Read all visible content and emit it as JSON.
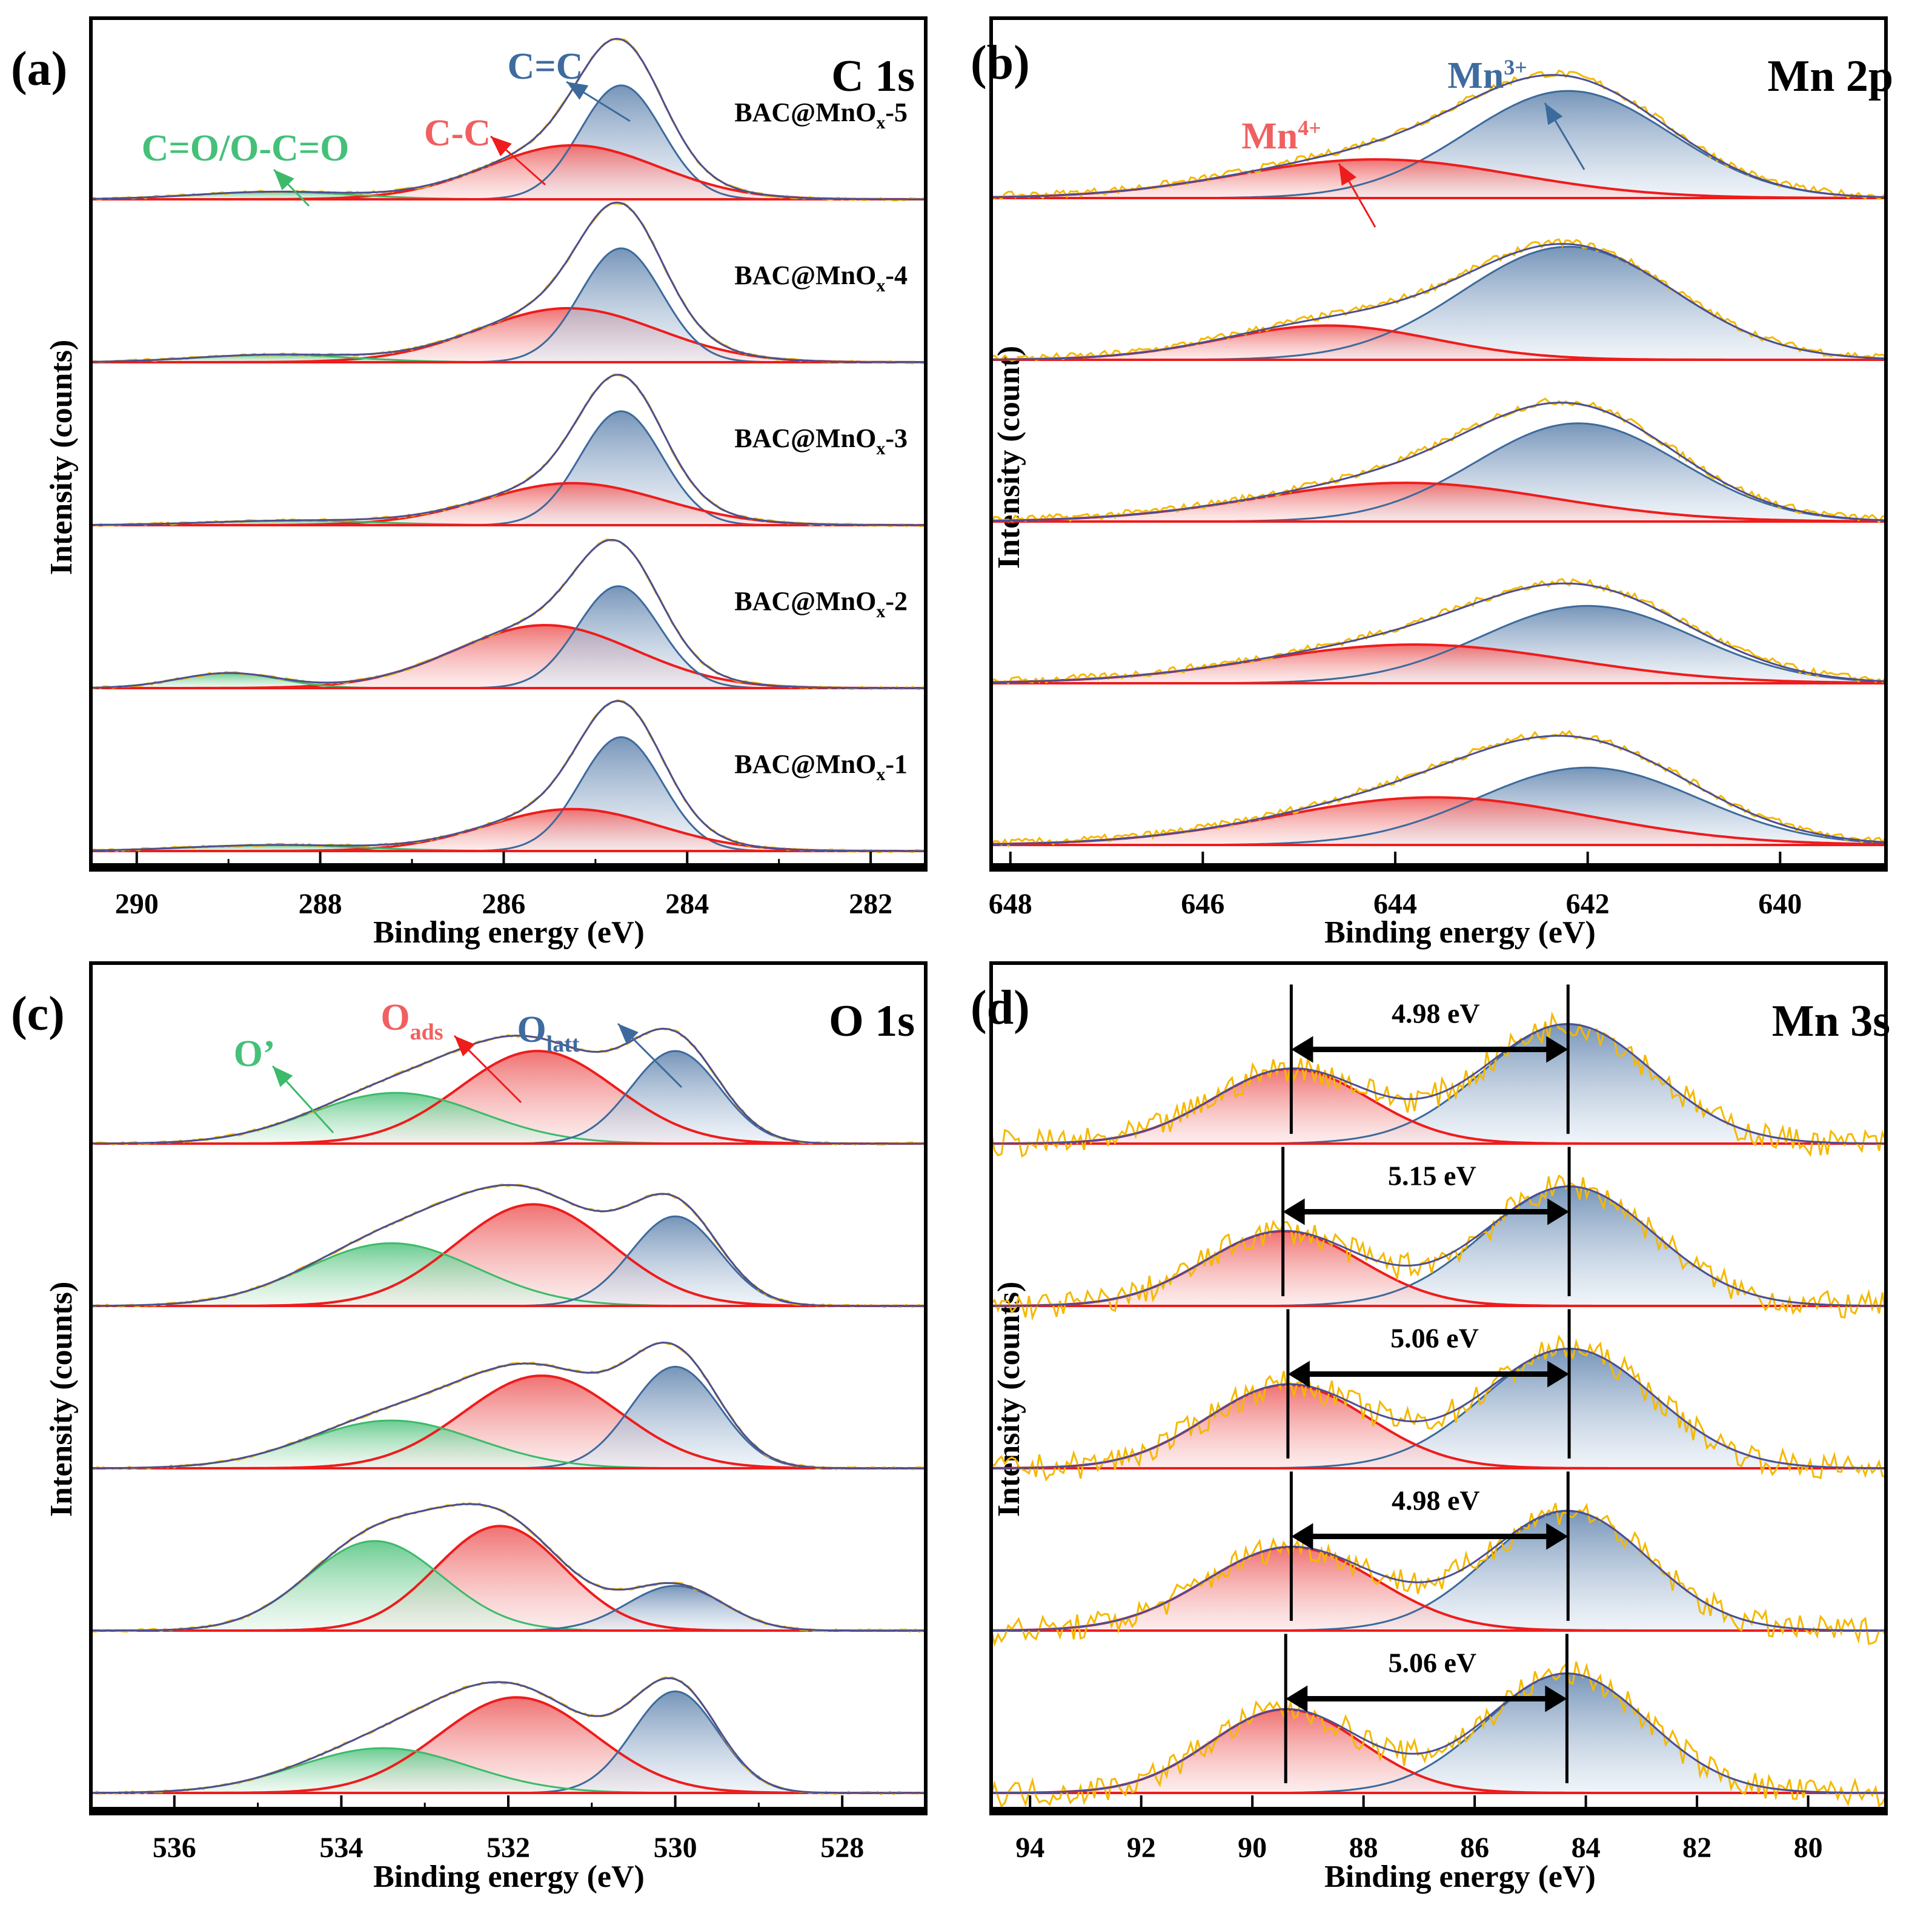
{
  "colors": {
    "raw": "#f5b800",
    "envelope": "#4b4f93",
    "blue": "#3d6a9c",
    "red": "#ee1c1c",
    "green": "#3cba6a",
    "red_label": "#f06060",
    "green_label": "#45c079",
    "blue_label": "#3f6b9f"
  },
  "chart_data": [
    {
      "id": "a",
      "type": "area",
      "panel_letter": "(a)",
      "title": "C 1s",
      "xlabel": "Binding energy (eV)",
      "ylabel": "Intensity (counts)",
      "xlim": [
        290.5,
        281.4
      ],
      "x_reversed": true,
      "xticks": [
        290,
        288,
        286,
        284,
        282
      ],
      "xtick_labels": [
        "290",
        "288",
        "286",
        "284",
        "282"
      ],
      "minor_ticks": [
        289,
        287,
        285,
        283
      ],
      "grid": false,
      "component_labels": [
        {
          "text": "C=C",
          "color_key": "blue_label"
        },
        {
          "text": "C-C",
          "color_key": "red_label"
        },
        {
          "text": "C=O/O-C=O",
          "color_key": "green_label"
        }
      ],
      "stacks": [
        {
          "sample": "BAC@MnOx-5",
          "sample_main": "BAC@MnO",
          "sample_sub": "x",
          "sample_suffix": "-5",
          "components": [
            {
              "name": "C=C",
              "color": "blue",
              "center": 284.72,
              "fwhm": 1.05,
              "height": 0.76
            },
            {
              "name": "C-C",
              "color": "red",
              "center": 285.25,
              "fwhm": 2.2,
              "height": 0.36
            },
            {
              "name": "C=O/O-C=O",
              "color": "green",
              "center": 288.5,
              "fwhm": 2.0,
              "height": 0.05
            }
          ]
        },
        {
          "sample": "BAC@MnOx-4",
          "sample_main": "BAC@MnO",
          "sample_sub": "x",
          "sample_suffix": "-4",
          "components": [
            {
              "name": "C=C",
              "color": "blue",
              "center": 284.72,
              "fwhm": 1.05,
              "height": 0.76
            },
            {
              "name": "C-C",
              "color": "red",
              "center": 285.3,
              "fwhm": 2.3,
              "height": 0.36
            },
            {
              "name": "C=O/O-C=O",
              "color": "green",
              "center": 288.5,
              "fwhm": 2.0,
              "height": 0.05
            }
          ]
        },
        {
          "sample": "BAC@MnOx-3",
          "sample_main": "BAC@MnO",
          "sample_sub": "x",
          "sample_suffix": "-3",
          "components": [
            {
              "name": "C=C",
              "color": "blue",
              "center": 284.72,
              "fwhm": 1.05,
              "height": 0.76
            },
            {
              "name": "C-C",
              "color": "red",
              "center": 285.25,
              "fwhm": 2.3,
              "height": 0.28
            },
            {
              "name": "C=O/O-C=O",
              "color": "green",
              "center": 288.3,
              "fwhm": 2.2,
              "height": 0.03
            }
          ]
        },
        {
          "sample": "BAC@MnOx-2",
          "sample_main": "BAC@MnO",
          "sample_sub": "x",
          "sample_suffix": "-2",
          "components": [
            {
              "name": "C=C",
              "color": "blue",
              "center": 284.75,
              "fwhm": 1.05,
              "height": 0.68
            },
            {
              "name": "C-C",
              "color": "red",
              "center": 285.55,
              "fwhm": 2.3,
              "height": 0.42
            },
            {
              "name": "C=O/O-C=O",
              "color": "green",
              "center": 289.0,
              "fwhm": 1.3,
              "height": 0.1
            }
          ]
        },
        {
          "sample": "BAC@MnOx-1",
          "sample_main": "BAC@MnO",
          "sample_sub": "x",
          "sample_suffix": "-1",
          "components": [
            {
              "name": "C=C",
              "color": "blue",
              "center": 284.72,
              "fwhm": 1.05,
              "height": 0.76
            },
            {
              "name": "C-C",
              "color": "red",
              "center": 285.25,
              "fwhm": 2.2,
              "height": 0.28
            },
            {
              "name": "C=O/O-C=O",
              "color": "green",
              "center": 288.5,
              "fwhm": 2.2,
              "height": 0.04
            }
          ]
        }
      ]
    },
    {
      "id": "b",
      "type": "area",
      "panel_letter": "(b)",
      "title": "Mn 2p",
      "xlabel": "Binding energy (eV)",
      "ylabel": "Intensity (count)",
      "xlim": [
        648.2,
        638.9
      ],
      "x_reversed": true,
      "xticks": [
        648,
        646,
        644,
        642,
        640
      ],
      "xtick_labels": [
        "648",
        "646",
        "644",
        "642",
        "640"
      ],
      "minor_ticks": [],
      "grid": false,
      "component_labels": [
        {
          "text": "Mn",
          "sup": "3+",
          "color_key": "blue_label"
        },
        {
          "text": "Mn",
          "sup": "4+",
          "color_key": "red_label"
        }
      ],
      "stacks": [
        {
          "components": [
            {
              "name": "Mn3+",
              "color": "blue",
              "center": 642.2,
              "fwhm": 2.5,
              "height": 0.72
            },
            {
              "name": "Mn4+",
              "color": "red",
              "center": 644.2,
              "fwhm": 3.4,
              "height": 0.26
            }
          ]
        },
        {
          "components": [
            {
              "name": "Mn3+",
              "color": "blue",
              "center": 642.2,
              "fwhm": 2.6,
              "height": 0.76
            },
            {
              "name": "Mn4+",
              "color": "red",
              "center": 644.7,
              "fwhm": 2.6,
              "height": 0.23
            }
          ]
        },
        {
          "components": [
            {
              "name": "Mn3+",
              "color": "blue",
              "center": 642.1,
              "fwhm": 2.5,
              "height": 0.66
            },
            {
              "name": "Mn4+",
              "color": "red",
              "center": 643.9,
              "fwhm": 3.6,
              "height": 0.26
            }
          ]
        },
        {
          "components": [
            {
              "name": "Mn3+",
              "color": "blue",
              "center": 642.0,
              "fwhm": 2.6,
              "height": 0.52
            },
            {
              "name": "Mn4+",
              "color": "red",
              "center": 643.8,
              "fwhm": 3.8,
              "height": 0.26
            }
          ]
        },
        {
          "components": [
            {
              "name": "Mn3+",
              "color": "blue",
              "center": 642.0,
              "fwhm": 2.7,
              "height": 0.52
            },
            {
              "name": "Mn4+",
              "color": "red",
              "center": 643.6,
              "fwhm": 3.8,
              "height": 0.32
            }
          ]
        }
      ]
    },
    {
      "id": "c",
      "type": "area",
      "panel_letter": "(c)",
      "title": "O 1s",
      "xlabel": "Binding energy (eV)",
      "ylabel": "Intensity (counts)",
      "xlim": [
        537.0,
        527.0
      ],
      "x_reversed": true,
      "xticks": [
        536,
        534,
        532,
        530,
        528
      ],
      "xtick_labels": [
        "536",
        "534",
        "532",
        "530",
        "528"
      ],
      "minor_ticks": [
        535,
        533,
        531,
        529
      ],
      "grid": false,
      "component_labels": [
        {
          "text": "O",
          "sub": "latt",
          "color_key": "blue_label"
        },
        {
          "text": "O",
          "sub": "ads",
          "color_key": "red_label"
        },
        {
          "text": "O’",
          "color_key": "green_label"
        }
      ],
      "stacks": [
        {
          "components": [
            {
              "name": "O_latt",
              "color": "blue",
              "center": 530.0,
              "fwhm": 1.25,
              "height": 0.62
            },
            {
              "name": "O_ads",
              "color": "red",
              "center": 531.65,
              "fwhm": 2.2,
              "height": 0.62
            },
            {
              "name": "O'",
              "color": "green",
              "center": 533.35,
              "fwhm": 2.4,
              "height": 0.34
            }
          ]
        },
        {
          "components": [
            {
              "name": "O_latt",
              "color": "blue",
              "center": 530.0,
              "fwhm": 1.25,
              "height": 0.6
            },
            {
              "name": "O_ads",
              "color": "red",
              "center": 531.7,
              "fwhm": 2.2,
              "height": 0.68
            },
            {
              "name": "O'",
              "color": "green",
              "center": 533.4,
              "fwhm": 2.4,
              "height": 0.42
            }
          ]
        },
        {
          "components": [
            {
              "name": "O_latt",
              "color": "blue",
              "center": 530.0,
              "fwhm": 1.25,
              "height": 0.68
            },
            {
              "name": "O_ads",
              "color": "red",
              "center": 531.6,
              "fwhm": 2.2,
              "height": 0.62
            },
            {
              "name": "O'",
              "color": "green",
              "center": 533.4,
              "fwhm": 2.4,
              "height": 0.32
            }
          ]
        },
        {
          "components": [
            {
              "name": "O_latt",
              "color": "blue",
              "center": 530.0,
              "fwhm": 1.35,
              "height": 0.3
            },
            {
              "name": "O_ads",
              "color": "red",
              "center": 532.1,
              "fwhm": 1.8,
              "height": 0.7
            },
            {
              "name": "O'",
              "color": "green",
              "center": 533.6,
              "fwhm": 1.9,
              "height": 0.6
            }
          ]
        },
        {
          "components": [
            {
              "name": "O_latt",
              "color": "blue",
              "center": 530.0,
              "fwhm": 1.2,
              "height": 0.68
            },
            {
              "name": "O_ads",
              "color": "red",
              "center": 531.9,
              "fwhm": 2.2,
              "height": 0.64
            },
            {
              "name": "O'",
              "color": "green",
              "center": 533.5,
              "fwhm": 2.4,
              "height": 0.3
            }
          ]
        }
      ]
    },
    {
      "id": "d",
      "type": "area",
      "panel_letter": "(d)",
      "title": "Mn 3s",
      "xlabel": "Binding energy (eV)",
      "ylabel": "Intensity (counts)",
      "xlim": [
        94.7,
        78.6
      ],
      "x_reversed": true,
      "xticks": [
        94,
        92,
        90,
        88,
        86,
        84,
        82,
        80
      ],
      "xtick_labels": [
        "94",
        "92",
        "90",
        "88",
        "86",
        "84",
        "82",
        "80"
      ],
      "minor_ticks": [],
      "grid": false,
      "component_labels": [],
      "stacks": [
        {
          "gap_label": "4.98 eV",
          "gap": 4.98,
          "components": [
            {
              "name": "high",
              "color": "red",
              "center": 89.3,
              "fwhm": 3.3,
              "height": 0.5
            },
            {
              "name": "low",
              "color": "blue",
              "center": 84.32,
              "fwhm": 3.6,
              "height": 0.8
            }
          ]
        },
        {
          "gap_label": "5.15 eV",
          "gap": 5.15,
          "components": [
            {
              "name": "high",
              "color": "red",
              "center": 89.45,
              "fwhm": 3.3,
              "height": 0.5
            },
            {
              "name": "low",
              "color": "blue",
              "center": 84.3,
              "fwhm": 3.6,
              "height": 0.8
            }
          ]
        },
        {
          "gap_label": "5.06 eV",
          "gap": 5.06,
          "components": [
            {
              "name": "high",
              "color": "red",
              "center": 89.36,
              "fwhm": 3.4,
              "height": 0.56
            },
            {
              "name": "low",
              "color": "blue",
              "center": 84.3,
              "fwhm": 3.6,
              "height": 0.8
            }
          ]
        },
        {
          "gap_label": "4.98 eV",
          "gap": 4.98,
          "components": [
            {
              "name": "high",
              "color": "red",
              "center": 89.3,
              "fwhm": 3.6,
              "height": 0.56
            },
            {
              "name": "low",
              "color": "blue",
              "center": 84.32,
              "fwhm": 3.4,
              "height": 0.8
            }
          ]
        },
        {
          "gap_label": "5.06 eV",
          "gap": 5.06,
          "components": [
            {
              "name": "high",
              "color": "red",
              "center": 89.4,
              "fwhm": 3.2,
              "height": 0.56
            },
            {
              "name": "low",
              "color": "blue",
              "center": 84.34,
              "fwhm": 3.4,
              "height": 0.8
            }
          ]
        }
      ]
    }
  ]
}
